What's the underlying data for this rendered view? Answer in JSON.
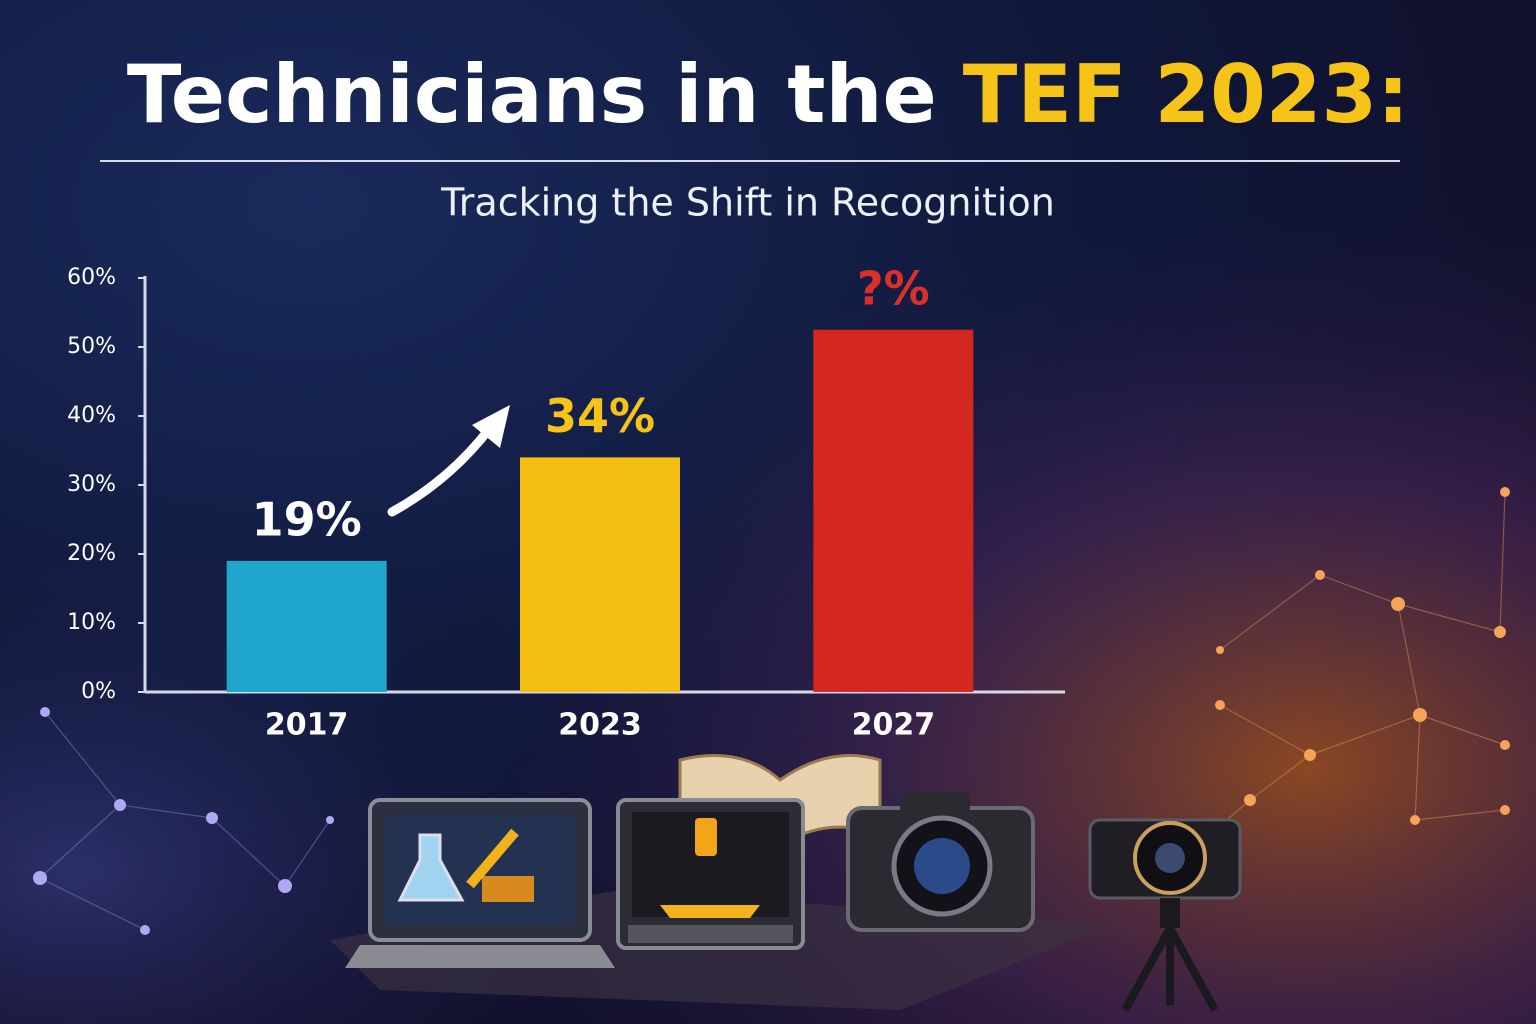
{
  "chart_data": {
    "type": "bar",
    "title": "Technicians in the",
    "title_highlight": "TEF 2023:",
    "subtitle": "Tracking the Shift in Recognition",
    "categories": [
      "2017",
      "2023",
      "2027"
    ],
    "values": [
      19,
      34,
      52.5
    ],
    "value_labels": [
      "19%",
      "34%",
      "?%"
    ],
    "colors": [
      "#1fa6cc",
      "#f4bd12",
      "#d3271f"
    ],
    "label_colors": [
      "#ffffff",
      "#f6c419",
      "#d9302a"
    ],
    "ylim": [
      0,
      60
    ],
    "yticks": [
      {
        "value": 0,
        "label": "0%"
      },
      {
        "value": 10,
        "label": "10%"
      },
      {
        "value": 20,
        "label": "20%"
      },
      {
        "value": 30,
        "label": "30%"
      },
      {
        "value": 40,
        "label": "40%"
      },
      {
        "value": 50,
        "label": "50%"
      },
      {
        "value": 60,
        "label": "60%"
      }
    ],
    "grid": false
  }
}
